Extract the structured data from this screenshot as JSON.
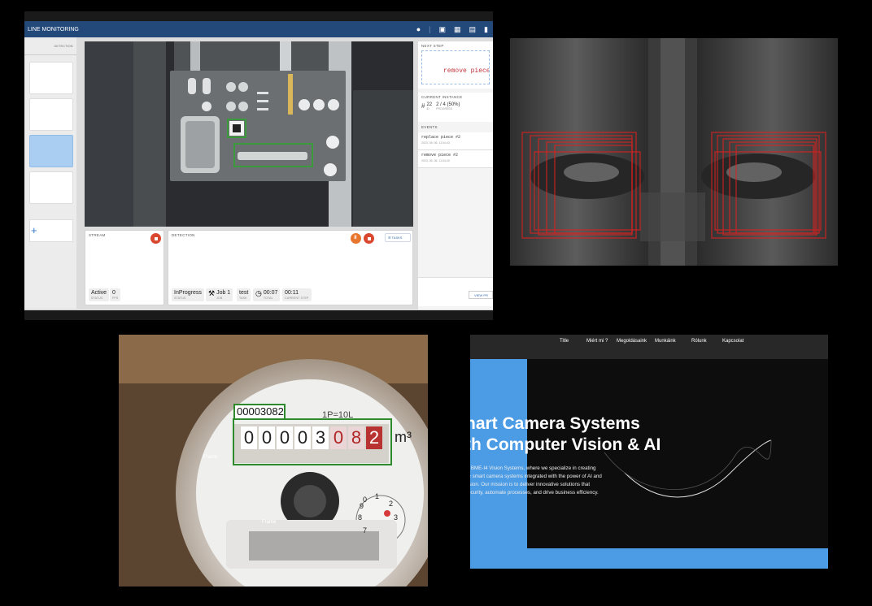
{
  "app": {
    "title": "LINE MONITORING",
    "top_icons": [
      "account-icon",
      "factory-icon",
      "dashboard-icon",
      "calendar-icon",
      "more-icon"
    ],
    "sidebar": {
      "tabs": [
        "",
        "DETECTION"
      ],
      "add_label": "+"
    },
    "next_step": {
      "title": "NEXT STEP",
      "instruction": "remove piece"
    },
    "current_instance": {
      "title": "CURRENT INSTANCE",
      "id_value": "22",
      "id_label": "ID",
      "progress_value": "2 / 4 (50%)",
      "progress_label": "PROGRESS"
    },
    "events": {
      "title": "EVENTS",
      "items": [
        {
          "text": "replace piece #2",
          "time": "2023. 06. 06. 11:04:43"
        },
        {
          "text": "remove piece #2",
          "time": "2023. 06. 06. 11:04:40"
        }
      ]
    },
    "view_button": "VIEW PR",
    "stream": {
      "title": "STREAM",
      "status_value": "Active",
      "status_label": "STATUS",
      "fps_value": "0",
      "fps_label": "FPS"
    },
    "detection": {
      "title": "DETECTION",
      "tasks_label": "TASKS",
      "status_value": "InProgress",
      "status_label": "STATUS",
      "job_value": "Job 1",
      "job_label": "JOB",
      "task_value": "test",
      "task_label": "TASK",
      "total_value": "00:07",
      "total_label": "TOTAL",
      "step_value": "00:11",
      "step_label": "CURRENT STEP"
    },
    "colors": {
      "header": "#23497a",
      "selected": "#a9cef1",
      "record": "#d9472f",
      "pause": "#e8762e",
      "bbox": "#3b9a3b"
    }
  },
  "meter": {
    "reading_label": "00003082",
    "digits": [
      "0",
      "0",
      "0",
      "0",
      "3",
      "0",
      "8",
      "2"
    ],
    "unit": "m³",
    "range": "1P=10L",
    "frame_labels": [
      "Frame",
      "Frame"
    ],
    "dial_numbers": [
      "0",
      "1",
      "2",
      "3",
      "7",
      "8",
      "9"
    ]
  },
  "website": {
    "nav": [
      "Title",
      "Miért mi ?",
      "Megoldásaink",
      "Munkáink",
      "Rólunk",
      "Kapcsolat"
    ],
    "headline_line1": "nart Camera Systems",
    "headline_line2": "th Computer Vision & AI",
    "intro_lines": [
      "to BME-I4 Vision Systems, where we specialize in creating",
      "ge smart camera systems integrated with the power of AI and",
      "vision. Our mission is to deliver innovative solutions that",
      "security, automate processes, and drive business efficiency."
    ],
    "colors": {
      "accent": "#4b9be5",
      "background": "#0d0d0d"
    }
  }
}
